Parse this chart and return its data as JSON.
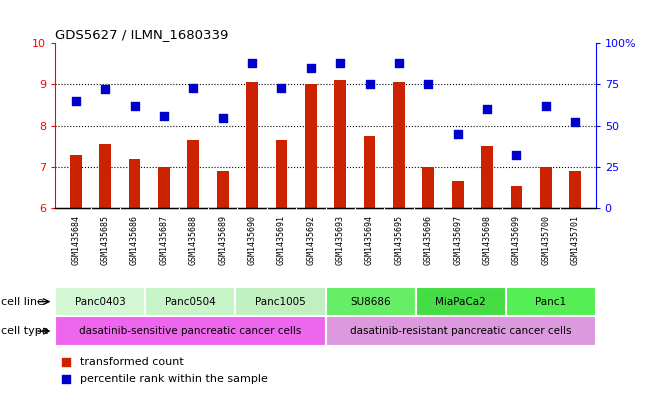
{
  "title": "GDS5627 / ILMN_1680339",
  "samples": [
    "GSM1435684",
    "GSM1435685",
    "GSM1435686",
    "GSM1435687",
    "GSM1435688",
    "GSM1435689",
    "GSM1435690",
    "GSM1435691",
    "GSM1435692",
    "GSM1435693",
    "GSM1435694",
    "GSM1435695",
    "GSM1435696",
    "GSM1435697",
    "GSM1435698",
    "GSM1435699",
    "GSM1435700",
    "GSM1435701"
  ],
  "transformed_count": [
    7.3,
    7.55,
    7.2,
    7.0,
    7.65,
    6.9,
    9.05,
    7.65,
    9.0,
    9.1,
    7.75,
    9.05,
    7.0,
    6.65,
    7.5,
    6.55,
    7.0,
    6.9
  ],
  "percentile_rank": [
    65,
    72,
    62,
    56,
    73,
    55,
    88,
    73,
    85,
    88,
    75,
    88,
    75,
    45,
    60,
    32,
    62,
    52
  ],
  "ylim_left": [
    6,
    10
  ],
  "ylim_right": [
    0,
    100
  ],
  "yticks_left": [
    6,
    7,
    8,
    9,
    10
  ],
  "yticks_right": [
    0,
    25,
    50,
    75,
    100
  ],
  "ytick_labels_right": [
    "0",
    "25",
    "50",
    "75",
    "100%"
  ],
  "bar_color": "#cc2200",
  "dot_color": "#0000cc",
  "cell_lines": [
    {
      "label": "Panc0403",
      "start": 0,
      "end": 2,
      "color": "#d4f7d4"
    },
    {
      "label": "Panc0504",
      "start": 3,
      "end": 5,
      "color": "#c8f5c8"
    },
    {
      "label": "Panc1005",
      "start": 6,
      "end": 8,
      "color": "#c0f0c0"
    },
    {
      "label": "SU8686",
      "start": 9,
      "end": 11,
      "color": "#66ee66"
    },
    {
      "label": "MiaPaCa2",
      "start": 12,
      "end": 14,
      "color": "#44dd44"
    },
    {
      "label": "Panc1",
      "start": 15,
      "end": 17,
      "color": "#55ee55"
    }
  ],
  "cell_types": [
    {
      "label": "dasatinib-sensitive pancreatic cancer cells",
      "start": 0,
      "end": 8,
      "color": "#ee66ee"
    },
    {
      "label": "dasatinib-resistant pancreatic cancer cells",
      "start": 9,
      "end": 17,
      "color": "#dd99dd"
    }
  ],
  "legend_items": [
    {
      "label": "transformed count",
      "color": "#cc2200"
    },
    {
      "label": "percentile rank within the sample",
      "color": "#0000cc"
    }
  ],
  "grid_yticks": [
    7,
    8,
    9
  ],
  "bar_width": 0.4,
  "dot_size": 30,
  "tick_label_bg": "#d0d0d0",
  "fig_width": 6.51,
  "fig_height": 3.93,
  "fig_dpi": 100
}
